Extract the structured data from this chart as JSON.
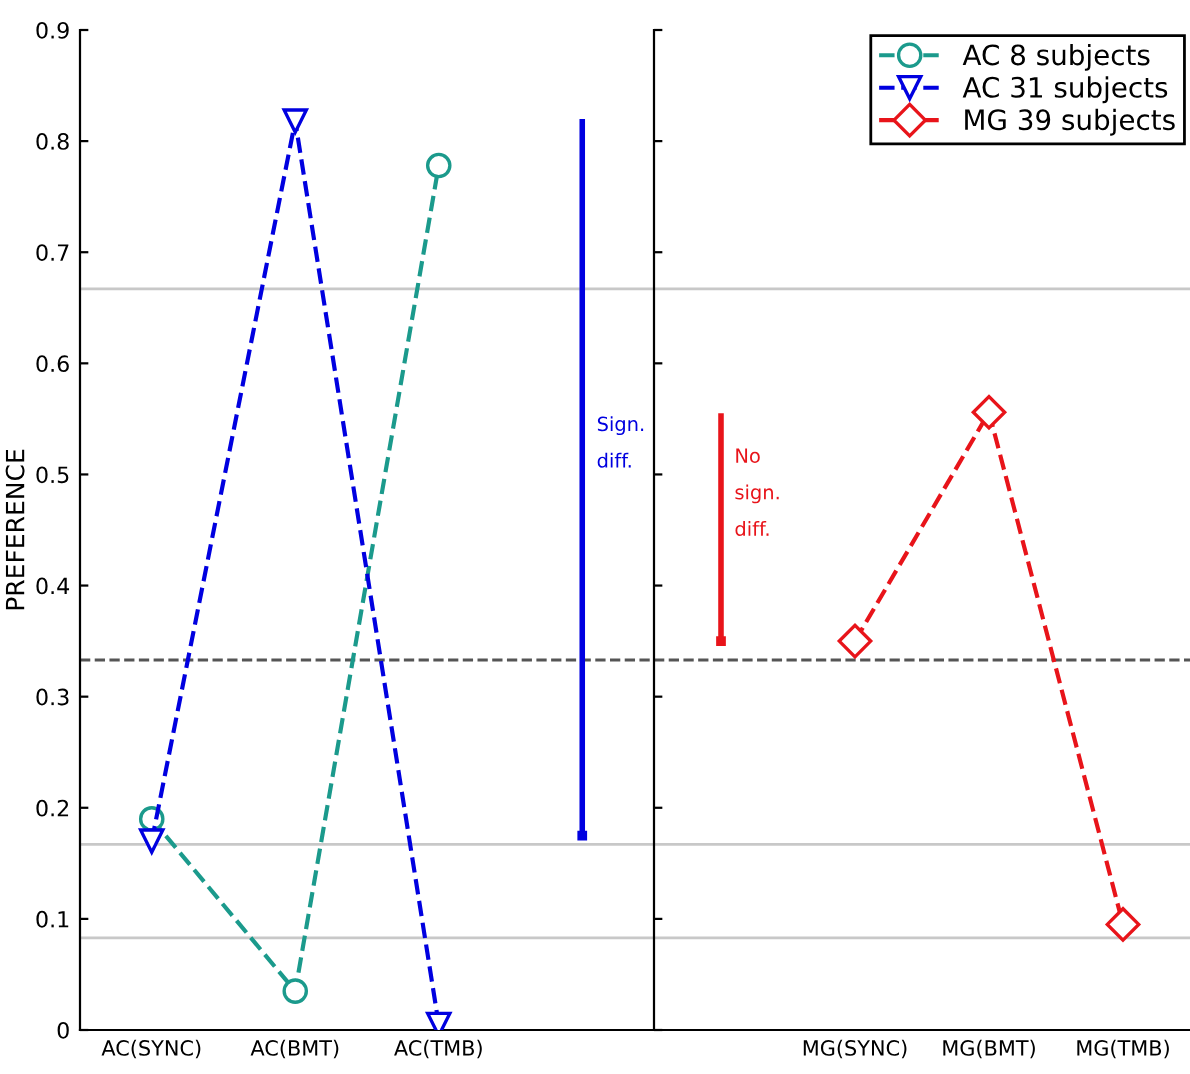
{
  "chart_data": [
    {
      "type": "line",
      "ylabel": "PREFERENCE",
      "ylim": [
        0,
        0.9
      ],
      "yticks": [
        0,
        0.1,
        0.2,
        0.3,
        0.4,
        0.5,
        0.6,
        0.7,
        0.8,
        0.9
      ],
      "categories": [
        "AC(SYNC)",
        "AC(BMT)",
        "AC(TMB)",
        null
      ],
      "grid": false,
      "line_style": "dashed",
      "series": [
        {
          "name": "AC 8 subjects",
          "color": "#1b9a8c",
          "marker": "circle",
          "values": [
            0.19,
            0.035,
            0.778,
            null
          ]
        },
        {
          "name": "AC 31 subjects",
          "color": "#0000e0",
          "marker": "triangle",
          "values": [
            0.17,
            0.818,
            0.005,
            null
          ]
        },
        {
          "color": "#0000e0",
          "marker": "square",
          "values": [
            null,
            null,
            null,
            0.175
          ],
          "errors": [
            null,
            null,
            null,
            [
              0.175,
              0.82
            ]
          ]
        }
      ],
      "annotations": [
        "Sign.\ndiff."
      ],
      "legend": "top right",
      "ref_lines": [
        {
          "axis": "y",
          "value": 0.667,
          "color": "#c8c8c8",
          "line_style": "solid"
        },
        {
          "axis": "y",
          "value": 0.333,
          "color": "#555555",
          "line_style": "dashed"
        },
        {
          "axis": "y",
          "value": 0.167,
          "color": "#c8c8c8",
          "line_style": "solid"
        },
        {
          "axis": "y",
          "value": 0.083,
          "color": "#c8c8c8",
          "line_style": "solid"
        }
      ]
    },
    {
      "type": "line",
      "ylim": [
        0,
        0.9
      ],
      "tick_labels": "x",
      "categories": [
        null,
        "MG(SYNC)",
        "MG(BMT)",
        "MG(TMB)"
      ],
      "grid": false,
      "line_style": "dashed",
      "legend": "top right",
      "series": [
        {
          "name": "MG 39 subjects",
          "color": "#e8141a",
          "marker": "diamond",
          "values": [
            null,
            0.35,
            0.556,
            0.095
          ]
        },
        {
          "color": "#e8141a",
          "marker": "square",
          "values": [
            0.35,
            null,
            null,
            null
          ],
          "errors": [
            [
              0.35,
              0.555
            ],
            null,
            null,
            null
          ]
        }
      ],
      "annotations": [
        "No\nsign.\ndiff."
      ],
      "ref_lines": [
        {
          "axis": "y",
          "value": 0.667,
          "color": "#c8c8c8",
          "line_style": "solid"
        },
        {
          "axis": "y",
          "value": 0.333,
          "color": "#555555",
          "line_style": "dashed"
        },
        {
          "axis": "y",
          "value": 0.167,
          "color": "#c8c8c8",
          "line_style": "solid"
        },
        {
          "axis": "y",
          "value": 0.083,
          "color": "#c8c8c8",
          "line_style": "solid"
        }
      ]
    }
  ]
}
